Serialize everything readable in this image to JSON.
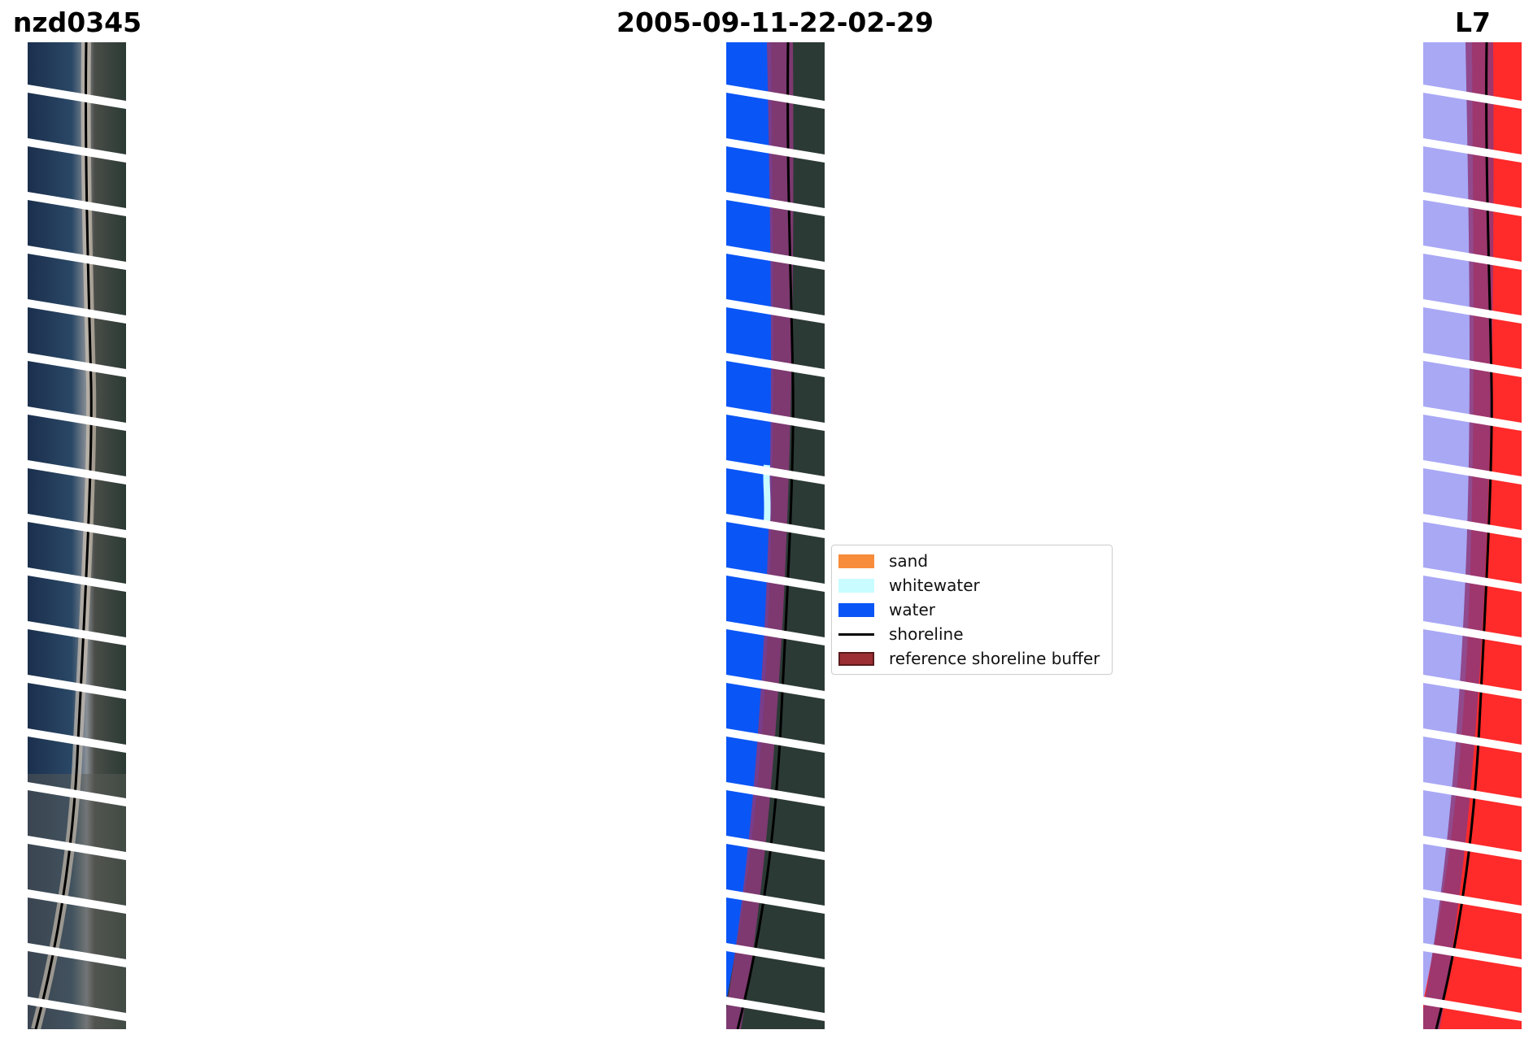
{
  "titles": {
    "left": "nzd0345",
    "center": "2005-09-11-22-02-29",
    "right": "L7"
  },
  "legend": {
    "items": [
      {
        "label": "sand",
        "color": "#f78c3a",
        "kind": "patch"
      },
      {
        "label": "whitewater",
        "color": "#c8fcff",
        "kind": "patch"
      },
      {
        "label": "water",
        "color": "#0a55f5",
        "kind": "patch"
      },
      {
        "label": "shoreline",
        "color": "#000000",
        "kind": "line"
      },
      {
        "label": "reference shoreline buffer",
        "color": "#9b2f33",
        "kind": "patch-outline"
      }
    ]
  },
  "colors": {
    "ocean": "#1c3352",
    "land": "#2c3a36",
    "water_class": "#0a55f5",
    "buffer": "#8c3a7a",
    "ndwi_water": "#a8a8f5",
    "ndwi_land": "#ff2a2a"
  }
}
